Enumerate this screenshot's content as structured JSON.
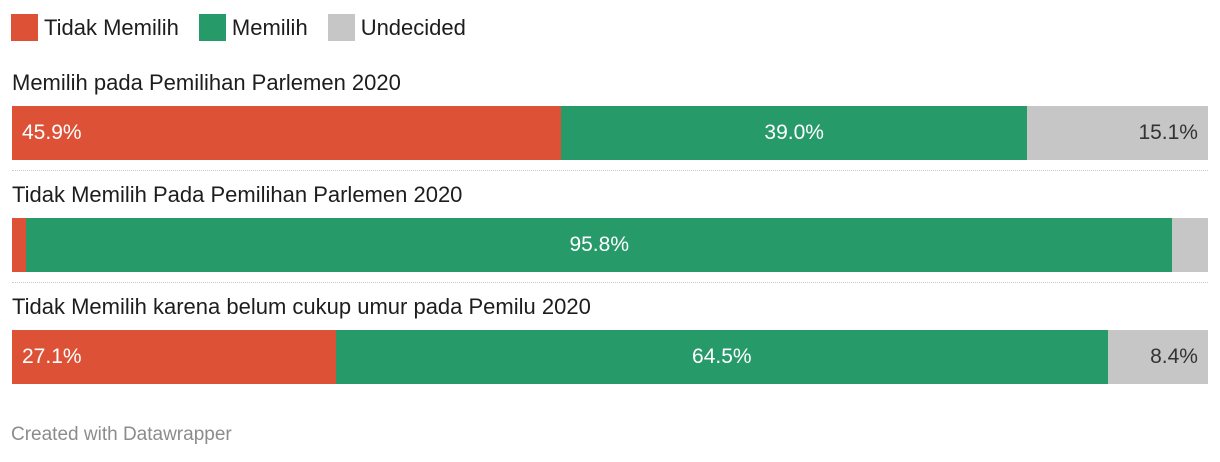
{
  "chart_data": {
    "type": "bar",
    "orientation": "horizontal-stacked-100",
    "legend_position": "top-left",
    "series": [
      {
        "name": "Tidak Memilih",
        "color": "#dd5237"
      },
      {
        "name": "Memilih",
        "color": "#279a6a"
      },
      {
        "name": "Undecided",
        "color": "#c6c6c6"
      }
    ],
    "categories": [
      "Memilih pada Pemilihan Parlemen 2020",
      "Tidak Memilih Pada Pemilihan Parlemen 2020",
      "Tidak Memilih karena belum cukup umur pada Pemilu 2020"
    ],
    "rows": [
      {
        "values": [
          45.9,
          39.0,
          15.1
        ],
        "labels": [
          "45.9%",
          "39.0%",
          "15.1%"
        ]
      },
      {
        "values": [
          1.2,
          95.8,
          3.0
        ],
        "labels": [
          "",
          "95.8%",
          ""
        ]
      },
      {
        "values": [
          27.1,
          64.5,
          8.4
        ],
        "labels": [
          "27.1%",
          "64.5%",
          "8.4%"
        ]
      }
    ]
  },
  "footer": "Created with Datawrapper"
}
